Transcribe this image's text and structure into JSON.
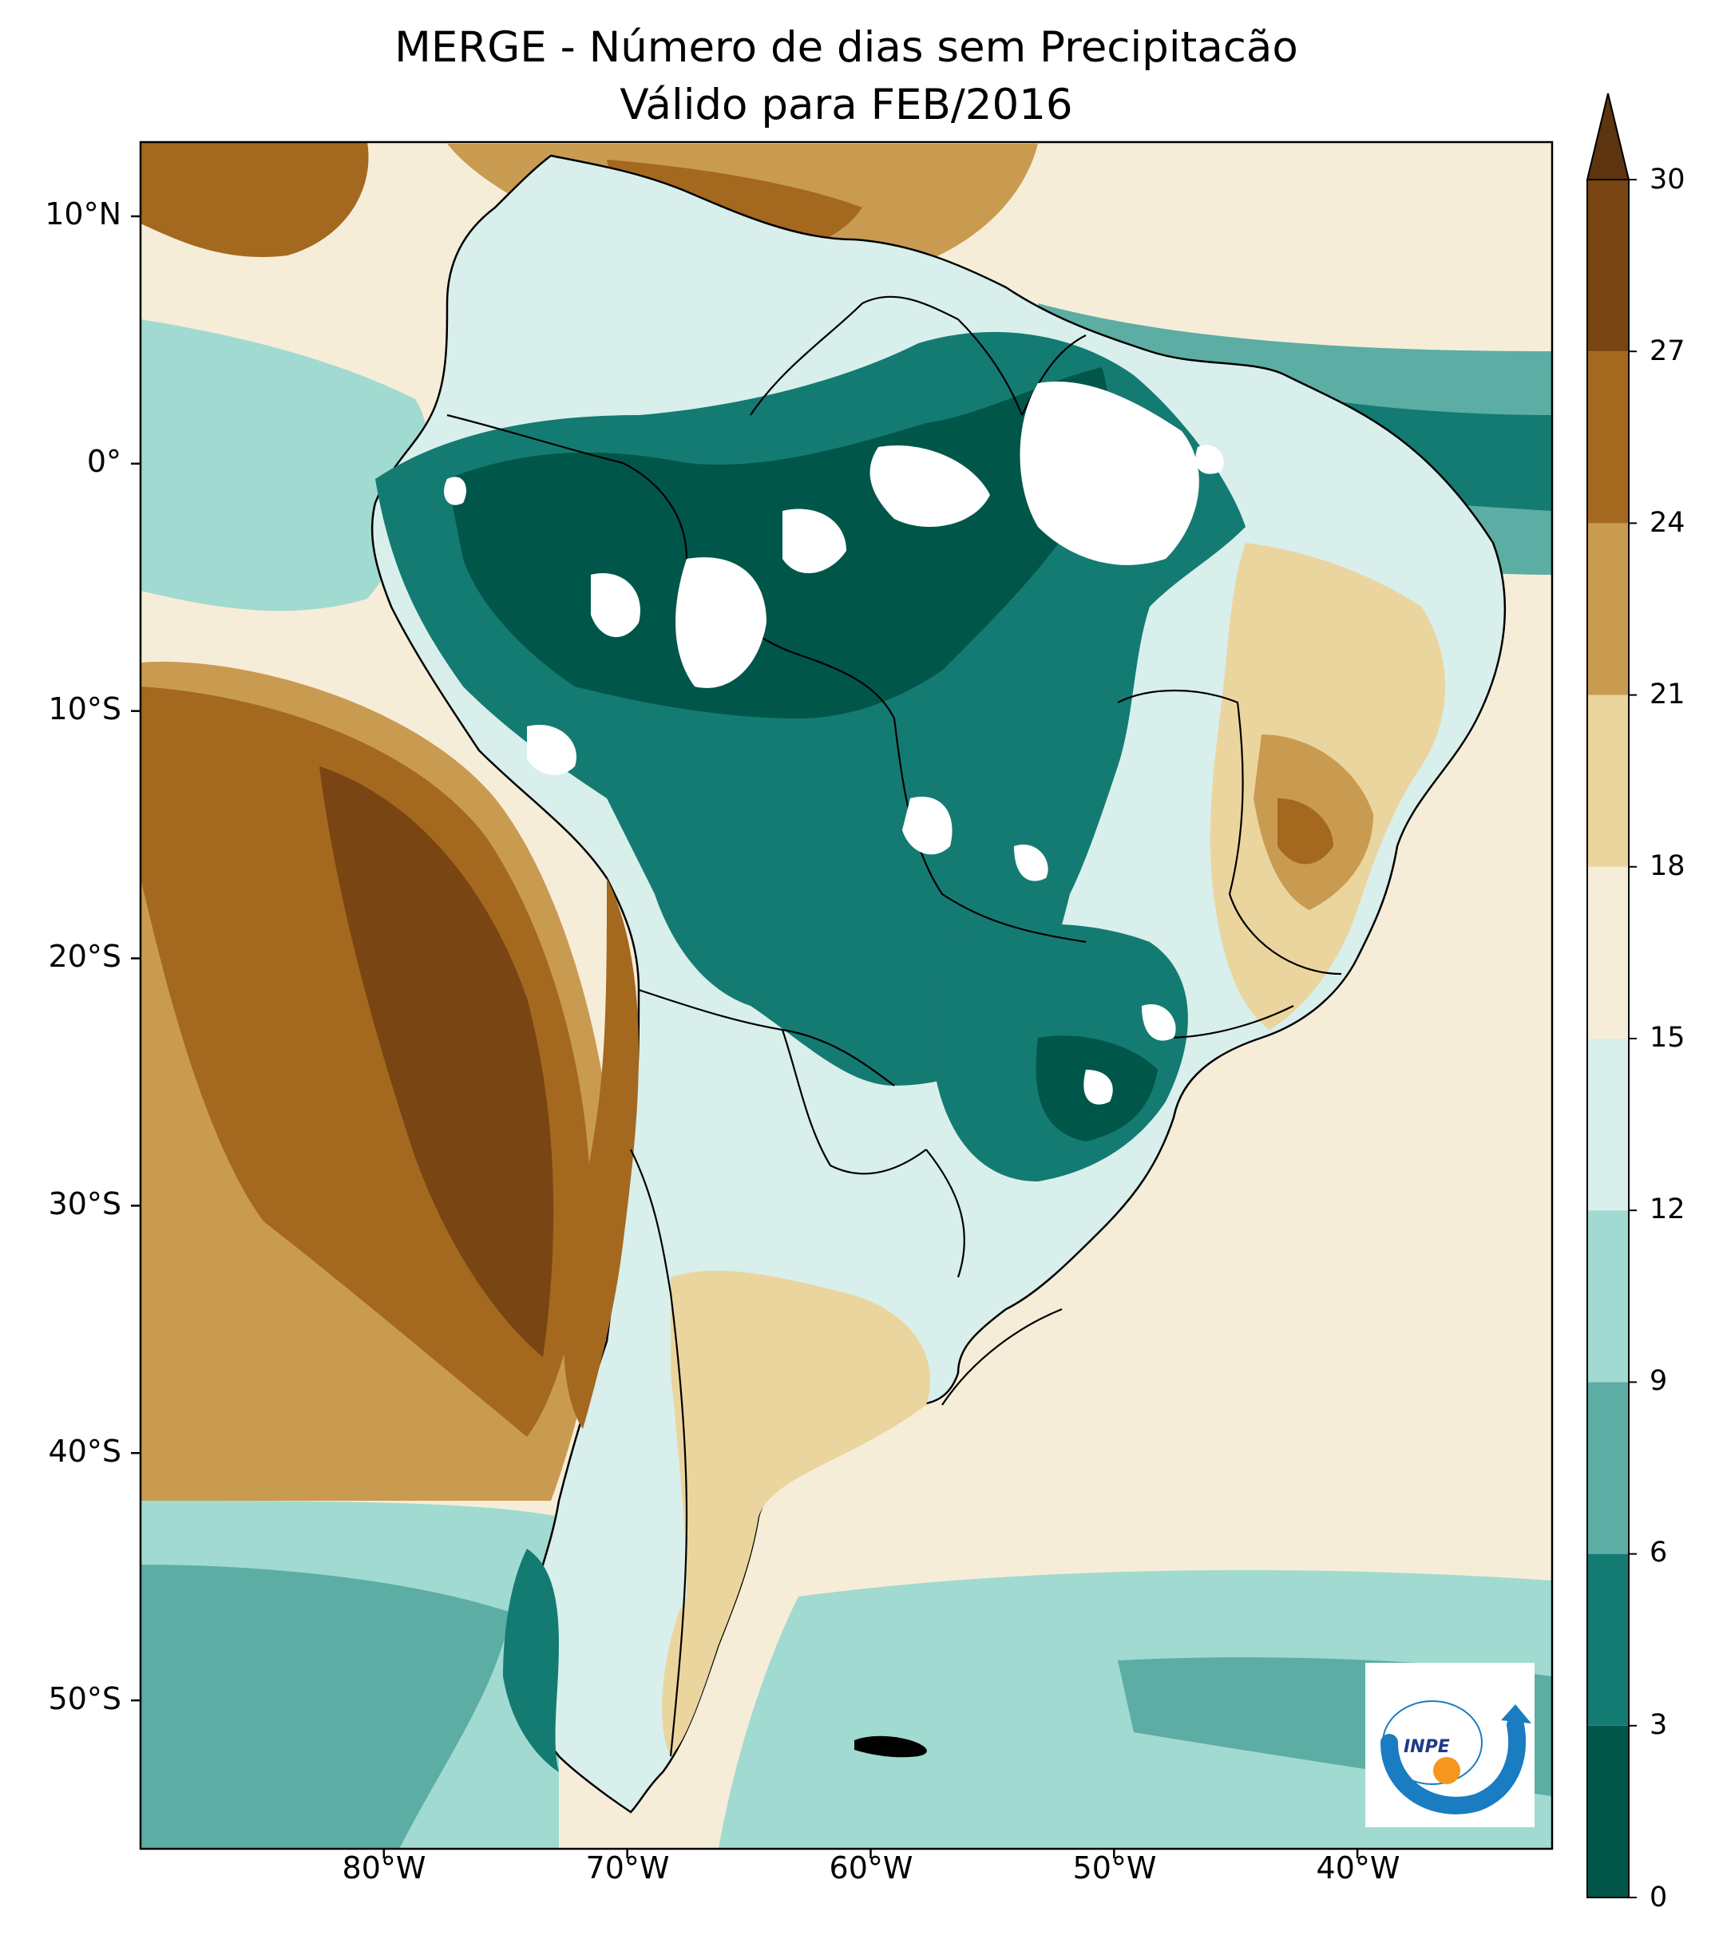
{
  "title": {
    "line1": "MERGE - Número de dias sem Precipitacão",
    "line2": "Válido para FEB/2016"
  },
  "map": {
    "region": "South America",
    "lon_range": [
      -90,
      -32
    ],
    "lat_range": [
      -56,
      13
    ],
    "lat_ticks": [
      {
        "value": 10,
        "label": "10°N"
      },
      {
        "value": 0,
        "label": "0°"
      },
      {
        "value": -10,
        "label": "10°S"
      },
      {
        "value": -20,
        "label": "20°S"
      },
      {
        "value": -30,
        "label": "30°S"
      },
      {
        "value": -40,
        "label": "40°S"
      },
      {
        "value": -50,
        "label": "50°S"
      }
    ],
    "lon_ticks": [
      {
        "value": -80,
        "label": "80°W"
      },
      {
        "value": -70,
        "label": "70°W"
      },
      {
        "value": -60,
        "label": "60°W"
      },
      {
        "value": -50,
        "label": "50°W"
      },
      {
        "value": -40,
        "label": "40°W"
      }
    ]
  },
  "colorbar": {
    "levels": [
      0,
      3,
      6,
      9,
      12,
      15,
      18,
      21,
      24,
      27,
      30
    ],
    "colors": [
      "#01564a",
      "#147b72",
      "#5cada4",
      "#a1dad1",
      "#d8efec",
      "#f6edd9",
      "#ebd59e",
      "#c99b51",
      "#a5681f",
      "#784513"
    ],
    "extend_color": "#5c3510",
    "labels": [
      "0",
      "3",
      "6",
      "9",
      "12",
      "15",
      "18",
      "21",
      "24",
      "27",
      "30"
    ]
  },
  "logo": {
    "text": "INPE",
    "colors": {
      "arrow": "#1a7cc1",
      "dot": "#f5961e",
      "text": "#1f3b87"
    }
  }
}
